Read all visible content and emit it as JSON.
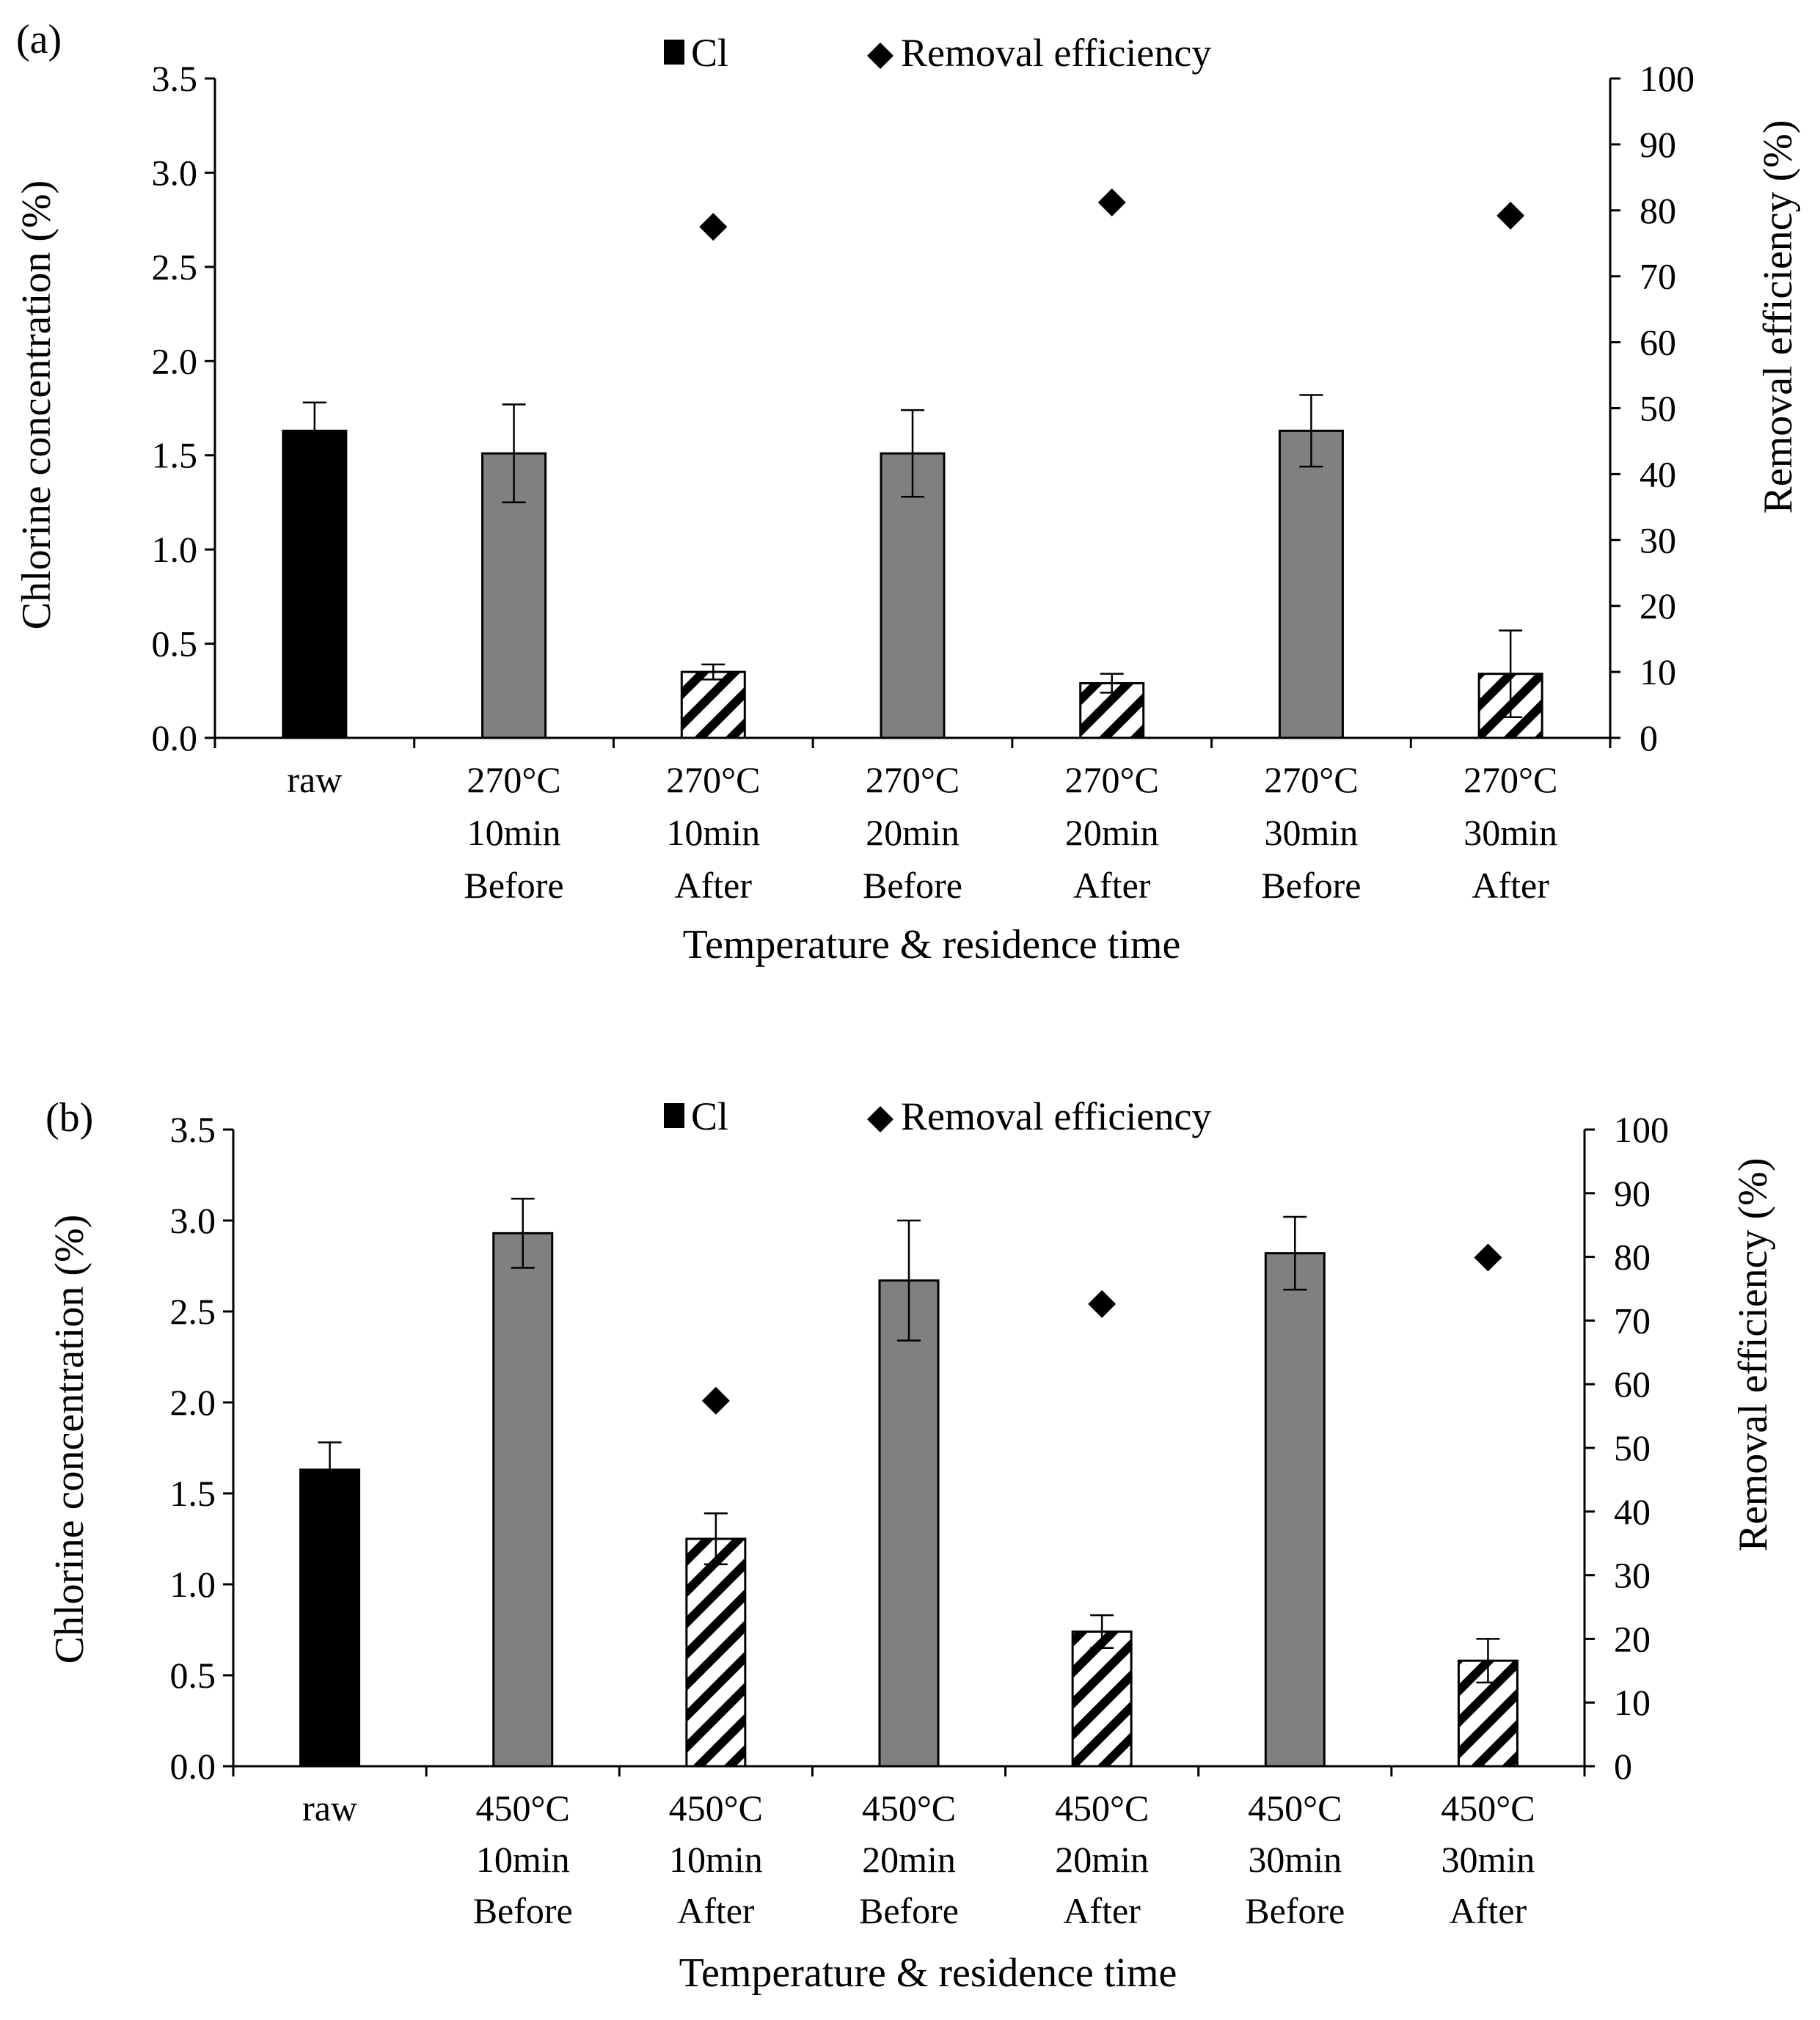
{
  "chart_data": [
    {
      "type": "bar",
      "panel_label": "(a)",
      "legend": {
        "bar": "Cl",
        "marker": "Removal efficiency"
      },
      "xlabel": "Temperature & residence time",
      "ylabel": "Chlorine concentration (%)",
      "y2label": "Removal efficiency (%)",
      "ylim": [
        0,
        3.5
      ],
      "y2lim": [
        0,
        100
      ],
      "yticks": [
        "0.0",
        "0.5",
        "1.0",
        "1.5",
        "2.0",
        "2.5",
        "3.0",
        "3.5"
      ],
      "y2ticks": [
        "0",
        "10",
        "20",
        "30",
        "40",
        "50",
        "60",
        "70",
        "80",
        "90",
        "100"
      ],
      "categories": [
        [
          "raw"
        ],
        [
          "270°C",
          "10min",
          "Before"
        ],
        [
          "270°C",
          "10min",
          "After"
        ],
        [
          "270°C",
          "20min",
          "Before"
        ],
        [
          "270°C",
          "20min",
          "After"
        ],
        [
          "270°C",
          "30min",
          "Before"
        ],
        [
          "270°C",
          "30min",
          "After"
        ]
      ],
      "bar_styles": [
        "raw",
        "before",
        "after",
        "before",
        "after",
        "before",
        "after"
      ],
      "values": [
        1.63,
        1.51,
        0.35,
        1.51,
        0.29,
        1.63,
        0.34
      ],
      "errors": [
        0.15,
        0.26,
        0.04,
        0.23,
        0.05,
        0.19,
        0.23
      ],
      "removal_efficiency": [
        null,
        null,
        77.5,
        null,
        81.2,
        null,
        79.2
      ],
      "colors": {
        "raw": "#000000",
        "before": "#808080",
        "after": "#ffffff"
      }
    },
    {
      "type": "bar",
      "panel_label": "(b)",
      "legend": {
        "bar": "Cl",
        "marker": "Removal efficiency"
      },
      "xlabel": "Temperature & residence time",
      "ylabel": "Chlorine concentration (%)",
      "y2label": "Removal efficiency (%)",
      "ylim": [
        0,
        3.5
      ],
      "y2lim": [
        0,
        100
      ],
      "yticks": [
        "0.0",
        "0.5",
        "1.0",
        "1.5",
        "2.0",
        "2.5",
        "3.0",
        "3.5"
      ],
      "y2ticks": [
        "0",
        "10",
        "20",
        "30",
        "40",
        "50",
        "60",
        "70",
        "80",
        "90",
        "100"
      ],
      "categories": [
        [
          "raw"
        ],
        [
          "450°C",
          "10min",
          "Before"
        ],
        [
          "450°C",
          "10min",
          "After"
        ],
        [
          "450°C",
          "20min",
          "Before"
        ],
        [
          "450°C",
          "20min",
          "After"
        ],
        [
          "450°C",
          "30min",
          "Before"
        ],
        [
          "450°C",
          "30min",
          "After"
        ]
      ],
      "bar_styles": [
        "raw",
        "before",
        "after",
        "before",
        "after",
        "before",
        "after"
      ],
      "values": [
        1.63,
        2.93,
        1.25,
        2.67,
        0.74,
        2.82,
        0.58
      ],
      "errors": [
        0.15,
        0.19,
        0.14,
        0.33,
        0.09,
        0.2,
        0.12
      ],
      "removal_efficiency": [
        null,
        null,
        57.4,
        null,
        72.6,
        null,
        79.9
      ],
      "colors": {
        "raw": "#000000",
        "before": "#808080",
        "after": "#ffffff"
      }
    }
  ]
}
